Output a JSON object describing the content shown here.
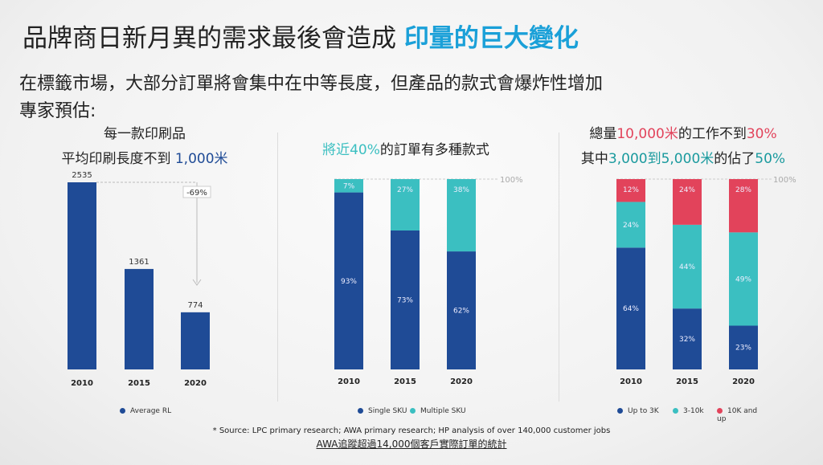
{
  "title": {
    "main": "品牌商日新月異的需求最後會造成 ",
    "highlight": "印量的巨大變化"
  },
  "subtitle": "在標籤市場，大部分訂單將會集中在中等長度，但產品的款式會爆炸性增加",
  "subtitle2": "專家預估:",
  "colors": {
    "blue": "#1f4b96",
    "teal": "#3bbfc1",
    "red": "#e2435b",
    "title_blue": "#1aa0d8"
  },
  "chart_data": [
    {
      "type": "bar",
      "head1": "每一款印刷品",
      "head2a": "平均印刷長度不到 ",
      "head2b": "1,000米",
      "categories": [
        "2010",
        "2015",
        "2020"
      ],
      "series": [
        {
          "name": "Average RL",
          "values": [
            2535,
            1361,
            774
          ]
        }
      ],
      "annotation": "-69%",
      "ylim": [
        0,
        2535
      ]
    },
    {
      "type": "stacked-bar",
      "head_a": "將近40%",
      "head_b": "的訂單有多種款式",
      "categories": [
        "2010",
        "2015",
        "2020"
      ],
      "series": [
        {
          "name": "Single SKU",
          "values": [
            93,
            73,
            62
          ]
        },
        {
          "name": "Multiple SKU",
          "values": [
            7,
            27,
            38
          ]
        }
      ],
      "ref_label": "100%",
      "ylim": [
        0,
        100
      ]
    },
    {
      "type": "stacked-bar",
      "head1a": "總量",
      "head1b": "10,000米",
      "head1c": "的工作不到",
      "head1d": "30%",
      "head2a": "其中",
      "head2b": "3,000到5,000米",
      "head2c": "的佔了",
      "head2d": "50%",
      "categories": [
        "2010",
        "2015",
        "2020"
      ],
      "series": [
        {
          "name": "Up to 3K",
          "values": [
            64,
            32,
            23
          ]
        },
        {
          "name": "3-10k",
          "values": [
            24,
            44,
            49
          ]
        },
        {
          "name": "10K and up",
          "values": [
            12,
            24,
            28
          ]
        }
      ],
      "ref_label": "100%",
      "ylim": [
        0,
        100
      ]
    }
  ],
  "source": "* Source: LPC primary research; AWA primary research; HP analysis of over 140,000 customer jobs",
  "footer": "AWA追蹤超過14,000個客戶實際訂單的統計"
}
